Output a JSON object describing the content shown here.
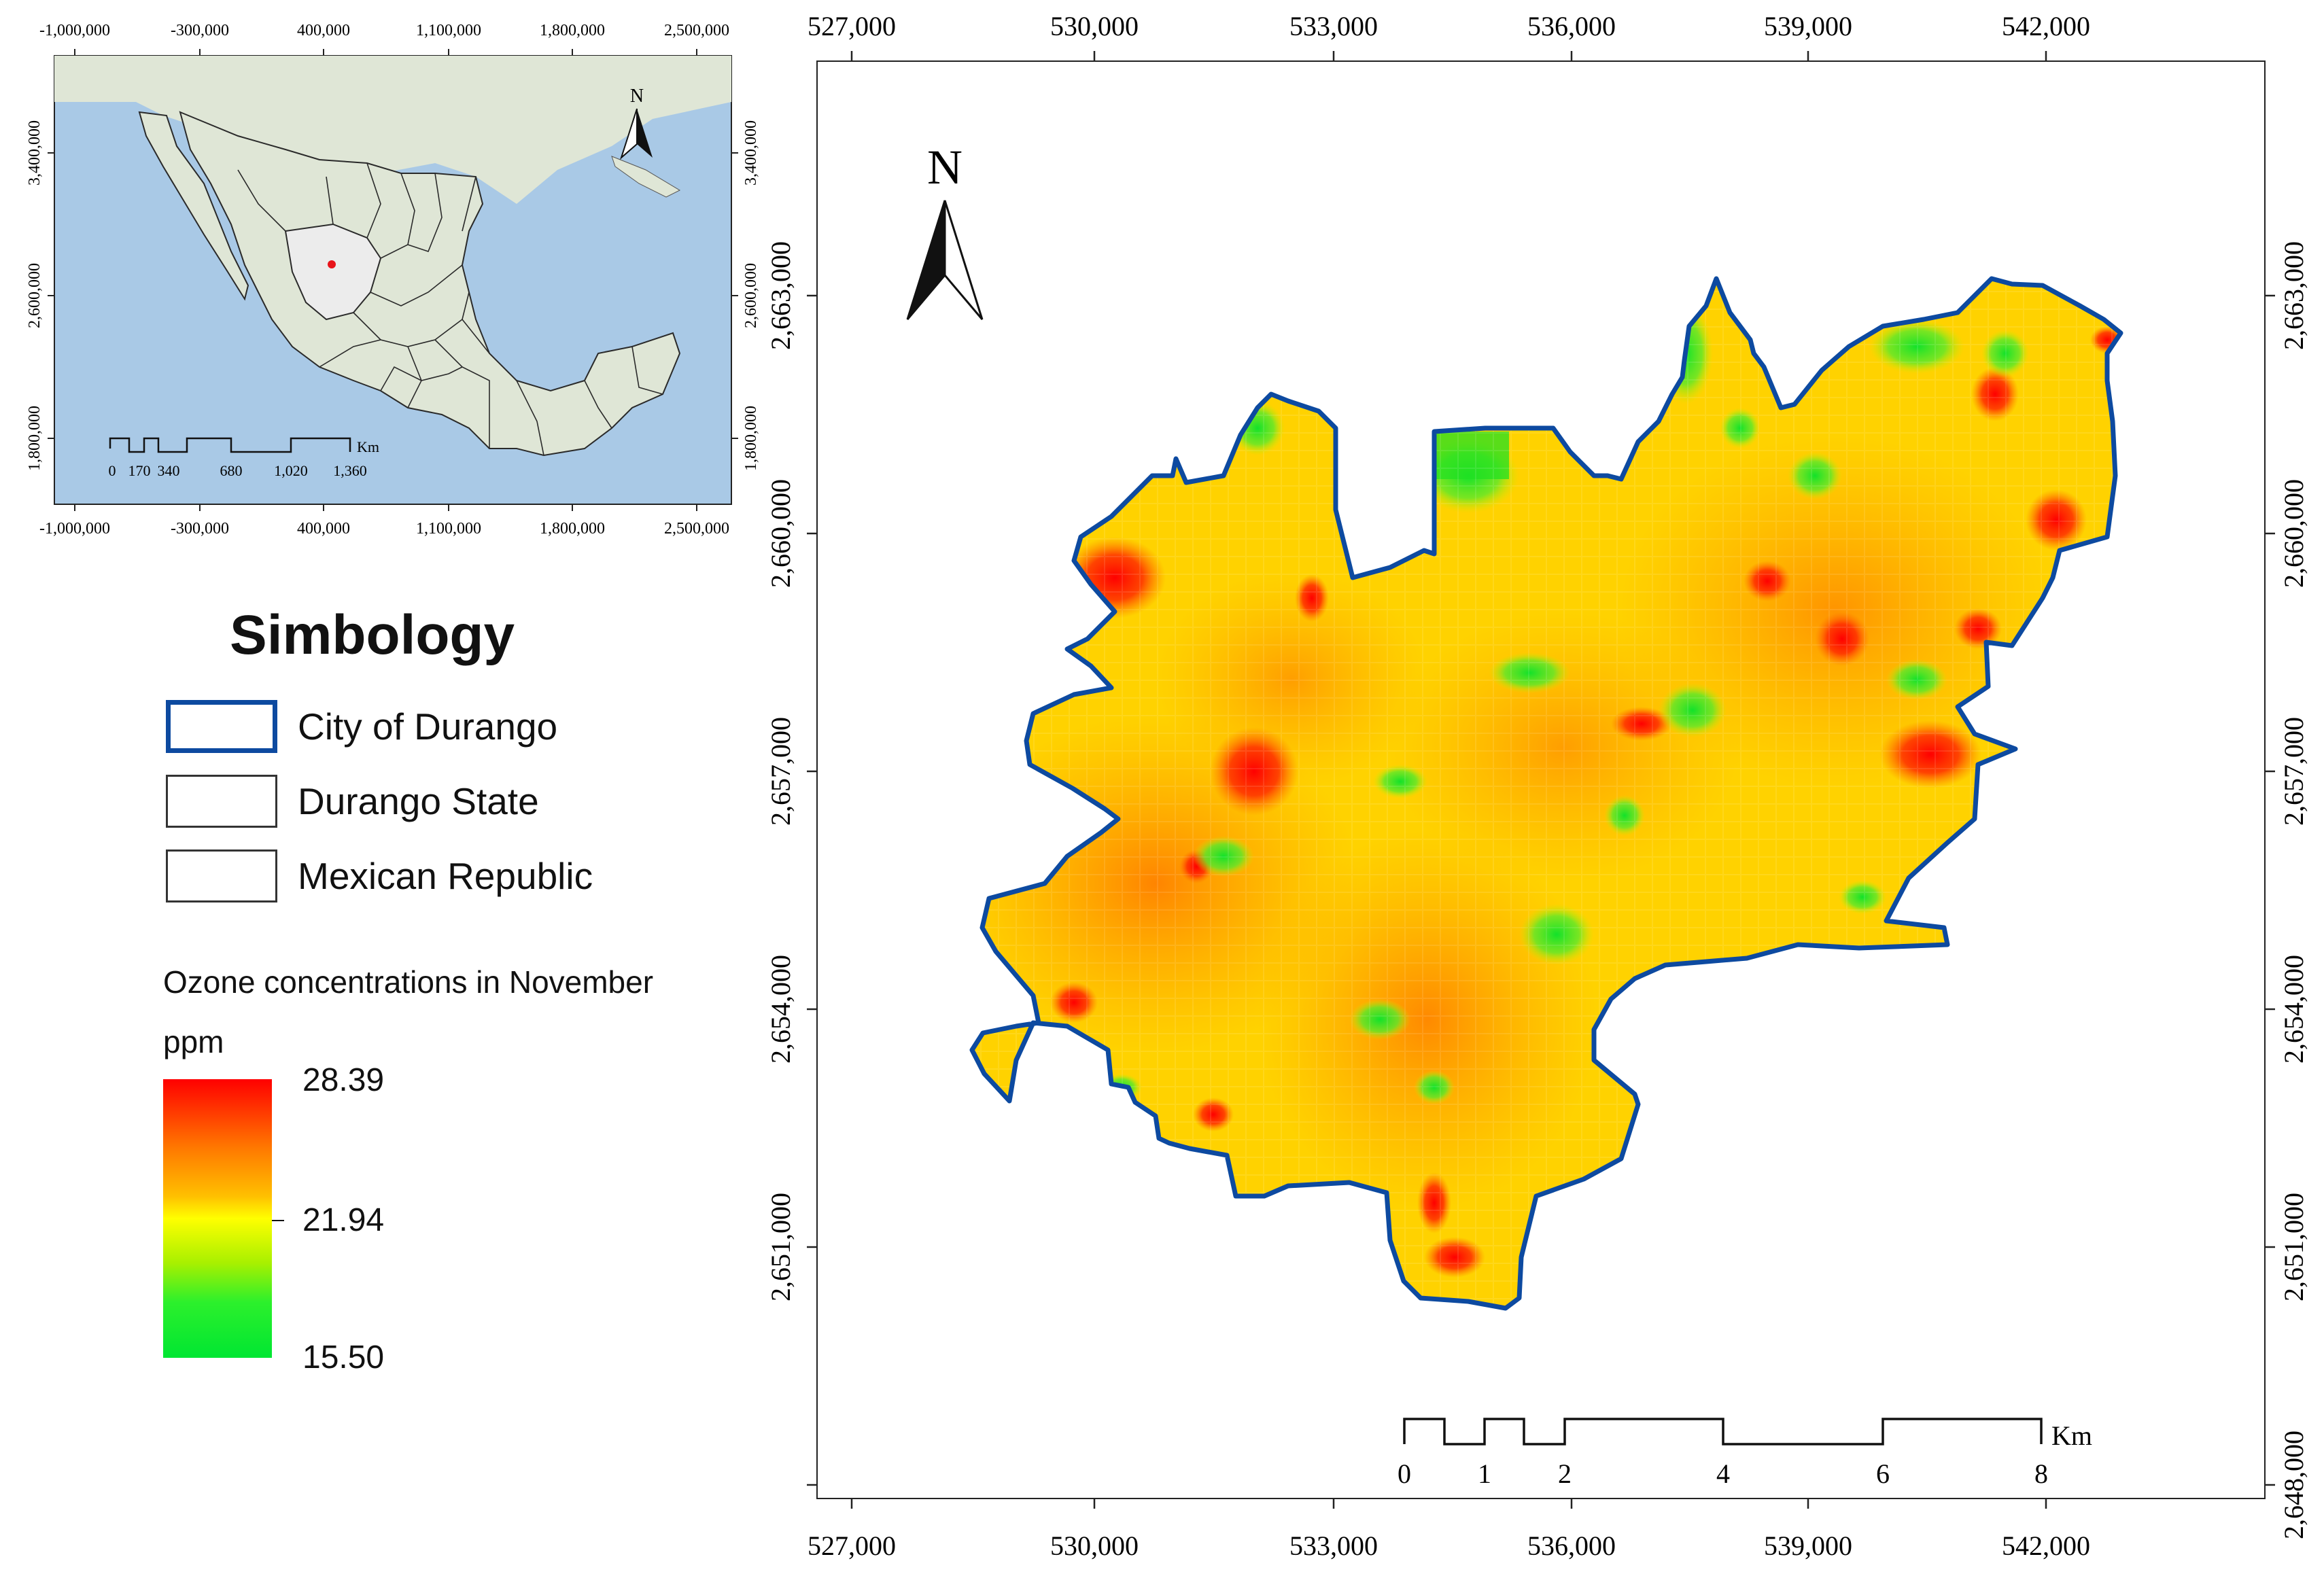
{
  "inset": {
    "top_ticks": [
      "-1,000,000",
      "-300,000",
      "400,000",
      "1,100,000",
      "1,800,000",
      "2,500,000"
    ],
    "bottom_ticks": [
      "-1,000,000",
      "-300,000",
      "400,000",
      "1,100,000",
      "1,800,000",
      "2,500,000"
    ],
    "left_ticks": [
      "3,400,000",
      "2,600,000",
      "1,800,000"
    ],
    "right_ticks": [
      "3,400,000",
      "2,600,000",
      "1,800,000"
    ],
    "north_label": "N",
    "scale_labels": [
      "0",
      "170",
      "340",
      "680",
      "1,020",
      "1,360"
    ],
    "scale_unit": "Km",
    "colors": {
      "ocean": "#a9c9e6",
      "land": "#dfe6d6",
      "state": "#e8e8e8",
      "marker": "#e8141a"
    }
  },
  "legend": {
    "title": "Simbology",
    "items": [
      {
        "label": "City of Durango",
        "border_color": "#0d4aa0"
      },
      {
        "label": "Durango State",
        "border_color": "#333333"
      },
      {
        "label": "Mexican Republic",
        "border_color": "#333333"
      }
    ],
    "ozone_title": "Ozone concentrations in November",
    "unit": "ppm",
    "max": "28.39",
    "mid": "21.94",
    "min": "15.50"
  },
  "map": {
    "north_label": "N",
    "top_ticks": [
      "527,000",
      "530,000",
      "533,000",
      "536,000",
      "539,000",
      "542,000"
    ],
    "bottom_ticks": [
      "527,000",
      "530,000",
      "533,000",
      "536,000",
      "539,000",
      "542,000"
    ],
    "left_ticks": [
      "2,663,000",
      "2,660,000",
      "2,657,000",
      "2,654,000",
      "2,651,000"
    ],
    "right_ticks": [
      "2,663,000",
      "2,660,000",
      "2,657,000",
      "2,654,000",
      "2,651,000",
      "2,648,000"
    ],
    "scale_labels": [
      "0",
      "1",
      "2",
      "4",
      "6",
      "8"
    ],
    "scale_unit": "Km",
    "colors": {
      "boundary": "#0d4aa0",
      "high": "#ff1a00",
      "mid": "#ffd200",
      "low": "#22e022"
    }
  }
}
